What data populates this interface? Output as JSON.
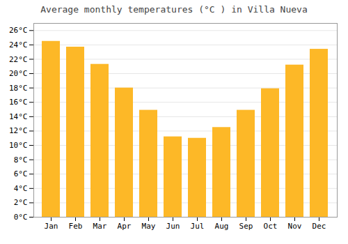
{
  "chart_data": {
    "type": "bar",
    "title": "Average monthly temperatures (°C ) in Villa Nueva",
    "categories": [
      "Jan",
      "Feb",
      "Mar",
      "Apr",
      "May",
      "Jun",
      "Jul",
      "Aug",
      "Sep",
      "Oct",
      "Nov",
      "Dec"
    ],
    "values": [
      24.5,
      23.7,
      21.3,
      18.0,
      14.9,
      11.2,
      11.0,
      12.5,
      14.9,
      17.9,
      21.2,
      23.4
    ],
    "color": "#FDB827",
    "ylim": [
      0,
      27
    ],
    "yticks": [
      {
        "value": 0,
        "label": "0°C"
      },
      {
        "value": 2,
        "label": "2°C"
      },
      {
        "value": 4,
        "label": "4°C"
      },
      {
        "value": 6,
        "label": "6°C"
      },
      {
        "value": 8,
        "label": "8°C"
      },
      {
        "value": 10,
        "label": "10°C"
      },
      {
        "value": 12,
        "label": "12°C"
      },
      {
        "value": 14,
        "label": "14°C"
      },
      {
        "value": 16,
        "label": "16°C"
      },
      {
        "value": 18,
        "label": "18°C"
      },
      {
        "value": 20,
        "label": "20°C"
      },
      {
        "value": 22,
        "label": "22°C"
      },
      {
        "value": 24,
        "label": "24°C"
      },
      {
        "value": 26,
        "label": "26°C"
      }
    ],
    "grid": true
  }
}
